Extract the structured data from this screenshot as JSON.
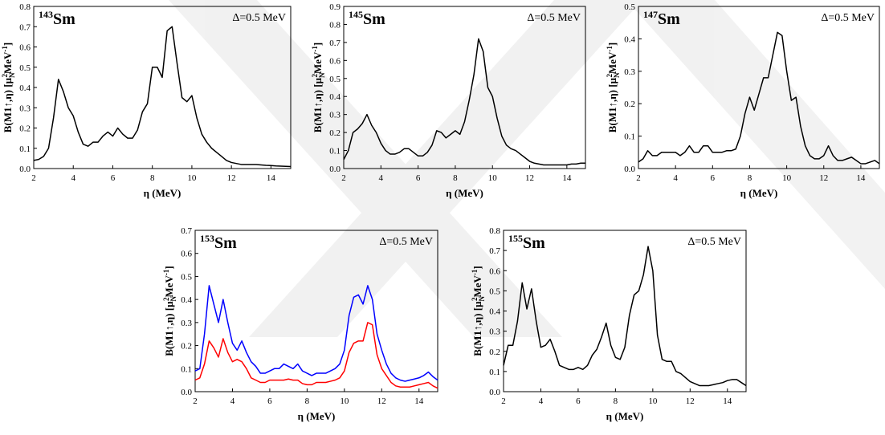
{
  "chart_data": [
    {
      "type": "line",
      "mass_number": "143",
      "element": "Sm",
      "annotation": "Δ=0.5 MeV",
      "xlabel": "η (MeV)",
      "ylabel": [
        "B(M1↑,η)  [μ",
        "N",
        "2",
        "MeV",
        "-1",
        "]"
      ],
      "xlim": [
        2,
        15
      ],
      "xticks": [
        2,
        4,
        6,
        8,
        10,
        12,
        14
      ],
      "ylim": [
        0,
        0.8
      ],
      "yticks": [
        {
          "value": 0,
          "label": "0.0"
        },
        0.1,
        0.2,
        0.3,
        0.4,
        0.5,
        0.6,
        0.7,
        0.8
      ],
      "x": [
        2,
        2.25,
        2.5,
        2.75,
        3,
        3.25,
        3.5,
        3.75,
        4,
        4.25,
        4.5,
        4.75,
        5,
        5.25,
        5.5,
        5.75,
        6,
        6.25,
        6.5,
        6.75,
        7,
        7.25,
        7.5,
        7.75,
        8,
        8.25,
        8.5,
        8.75,
        9,
        9.25,
        9.5,
        9.75,
        10,
        10.25,
        10.5,
        10.75,
        11,
        11.25,
        11.5,
        11.75,
        12,
        12.25,
        12.5,
        12.75,
        13,
        13.25,
        13.5,
        13.75,
        14,
        14.25,
        14.5,
        14.75,
        15
      ],
      "series": [
        {
          "color": "#000000",
          "values": [
            0.04,
            0.045,
            0.06,
            0.1,
            0.25,
            0.44,
            0.38,
            0.3,
            0.26,
            0.18,
            0.12,
            0.11,
            0.13,
            0.13,
            0.16,
            0.18,
            0.16,
            0.2,
            0.17,
            0.15,
            0.15,
            0.19,
            0.28,
            0.32,
            0.5,
            0.5,
            0.45,
            0.68,
            0.7,
            0.52,
            0.35,
            0.33,
            0.36,
            0.25,
            0.17,
            0.13,
            0.1,
            0.08,
            0.06,
            0.04,
            0.03,
            0.025,
            0.02,
            0.02,
            0.02,
            0.02,
            0.018,
            0.016,
            0.015,
            0.013,
            0.012,
            0.011,
            0.01
          ]
        }
      ]
    },
    {
      "type": "line",
      "mass_number": "145",
      "element": "Sm",
      "annotation": "Δ=0.5 MeV",
      "xlabel": "η (MeV)",
      "ylabel": [
        "B(M1↑,η)  [μ",
        "N",
        "2",
        "MeV",
        "-1",
        "]"
      ],
      "xlim": [
        2,
        15
      ],
      "xticks": [
        2,
        4,
        6,
        8,
        10,
        12,
        14
      ],
      "ylim": [
        0,
        0.9
      ],
      "yticks": [
        {
          "value": 0,
          "label": "0.0"
        },
        0.1,
        0.2,
        0.3,
        0.4,
        0.5,
        0.6,
        0.7,
        0.8,
        0.9
      ],
      "x": [
        2,
        2.25,
        2.5,
        2.75,
        3,
        3.25,
        3.5,
        3.75,
        4,
        4.25,
        4.5,
        4.75,
        5,
        5.25,
        5.5,
        5.75,
        6,
        6.25,
        6.5,
        6.75,
        7,
        7.25,
        7.5,
        7.75,
        8,
        8.25,
        8.5,
        8.75,
        9,
        9.25,
        9.5,
        9.75,
        10,
        10.25,
        10.5,
        10.75,
        11,
        11.25,
        11.5,
        11.75,
        12,
        12.25,
        12.5,
        12.75,
        13,
        13.25,
        13.5,
        13.75,
        14,
        14.25,
        14.5,
        14.75,
        15
      ],
      "series": [
        {
          "color": "#000000",
          "values": [
            0.05,
            0.1,
            0.2,
            0.22,
            0.25,
            0.3,
            0.24,
            0.2,
            0.14,
            0.1,
            0.08,
            0.08,
            0.09,
            0.11,
            0.11,
            0.09,
            0.07,
            0.07,
            0.09,
            0.13,
            0.21,
            0.2,
            0.17,
            0.19,
            0.21,
            0.19,
            0.26,
            0.38,
            0.52,
            0.72,
            0.65,
            0.45,
            0.4,
            0.28,
            0.18,
            0.13,
            0.11,
            0.1,
            0.08,
            0.06,
            0.04,
            0.03,
            0.025,
            0.02,
            0.02,
            0.02,
            0.02,
            0.02,
            0.02,
            0.025,
            0.025,
            0.03,
            0.03
          ]
        }
      ]
    },
    {
      "type": "line",
      "mass_number": "147",
      "element": "Sm",
      "annotation": "Δ=0.5 MeV",
      "xlabel": "η (MeV)",
      "ylabel": [
        "B(M1↑,η)  [μ",
        "N",
        "2",
        "MeV",
        "-1",
        "]"
      ],
      "xlim": [
        2,
        15
      ],
      "xticks": [
        2,
        4,
        6,
        8,
        10,
        12,
        14
      ],
      "ylim": [
        0,
        0.5
      ],
      "yticks": [
        {
          "value": 0,
          "label": "0.0"
        },
        0.1,
        0.2,
        0.3,
        0.4,
        0.5
      ],
      "x": [
        2,
        2.25,
        2.5,
        2.75,
        3,
        3.25,
        3.5,
        3.75,
        4,
        4.25,
        4.5,
        4.75,
        5,
        5.25,
        5.5,
        5.75,
        6,
        6.25,
        6.5,
        6.75,
        7,
        7.25,
        7.5,
        7.75,
        8,
        8.25,
        8.5,
        8.75,
        9,
        9.25,
        9.5,
        9.75,
        10,
        10.25,
        10.5,
        10.75,
        11,
        11.25,
        11.5,
        11.75,
        12,
        12.25,
        12.5,
        12.75,
        13,
        13.25,
        13.5,
        13.75,
        14,
        14.25,
        14.5,
        14.75,
        15
      ],
      "series": [
        {
          "color": "#000000",
          "values": [
            0.02,
            0.03,
            0.055,
            0.04,
            0.04,
            0.05,
            0.05,
            0.05,
            0.05,
            0.04,
            0.05,
            0.07,
            0.05,
            0.05,
            0.07,
            0.07,
            0.05,
            0.05,
            0.05,
            0.055,
            0.055,
            0.06,
            0.1,
            0.17,
            0.22,
            0.18,
            0.23,
            0.28,
            0.28,
            0.35,
            0.42,
            0.41,
            0.3,
            0.21,
            0.22,
            0.13,
            0.07,
            0.04,
            0.03,
            0.03,
            0.04,
            0.07,
            0.04,
            0.025,
            0.025,
            0.03,
            0.035,
            0.025,
            0.015,
            0.015,
            0.02,
            0.025,
            0.015
          ]
        }
      ]
    },
    {
      "type": "line",
      "mass_number": "153",
      "element": "Sm",
      "annotation": "Δ=0.5 MeV",
      "xlabel": "η (MeV)",
      "ylabel": [
        "B(M1↑,η)  [μ",
        "N",
        "2",
        "MeV",
        "-1",
        "]"
      ],
      "xlim": [
        2,
        15
      ],
      "xticks": [
        2,
        4,
        6,
        8,
        10,
        12,
        14
      ],
      "ylim": [
        0,
        0.7
      ],
      "yticks": [
        {
          "value": 0,
          "label": "0.0"
        },
        0.1,
        0.2,
        0.3,
        0.4,
        0.5,
        0.6,
        0.7
      ],
      "x": [
        2,
        2.25,
        2.5,
        2.75,
        3,
        3.25,
        3.5,
        3.75,
        4,
        4.25,
        4.5,
        4.75,
        5,
        5.25,
        5.5,
        5.75,
        6,
        6.25,
        6.5,
        6.75,
        7,
        7.25,
        7.5,
        7.75,
        8,
        8.25,
        8.5,
        8.75,
        9,
        9.25,
        9.5,
        9.75,
        10,
        10.25,
        10.5,
        10.75,
        11,
        11.25,
        11.5,
        11.75,
        12,
        12.25,
        12.5,
        12.75,
        13,
        13.25,
        13.5,
        13.75,
        14,
        14.25,
        14.5,
        14.75,
        15
      ],
      "series": [
        {
          "color": "#0000ff",
          "values": [
            0.09,
            0.1,
            0.25,
            0.46,
            0.38,
            0.3,
            0.4,
            0.3,
            0.21,
            0.18,
            0.22,
            0.17,
            0.13,
            0.11,
            0.08,
            0.08,
            0.09,
            0.1,
            0.1,
            0.12,
            0.11,
            0.1,
            0.12,
            0.09,
            0.08,
            0.07,
            0.08,
            0.08,
            0.08,
            0.09,
            0.1,
            0.12,
            0.18,
            0.33,
            0.41,
            0.42,
            0.38,
            0.46,
            0.4,
            0.25,
            0.18,
            0.12,
            0.08,
            0.06,
            0.05,
            0.045,
            0.05,
            0.055,
            0.06,
            0.07,
            0.085,
            0.065,
            0.05
          ]
        },
        {
          "color": "#ff0000",
          "values": [
            0.05,
            0.06,
            0.12,
            0.22,
            0.19,
            0.15,
            0.23,
            0.17,
            0.13,
            0.14,
            0.13,
            0.1,
            0.06,
            0.05,
            0.04,
            0.04,
            0.05,
            0.05,
            0.05,
            0.05,
            0.055,
            0.05,
            0.05,
            0.035,
            0.03,
            0.03,
            0.04,
            0.04,
            0.04,
            0.045,
            0.05,
            0.06,
            0.09,
            0.17,
            0.21,
            0.22,
            0.22,
            0.3,
            0.29,
            0.16,
            0.1,
            0.07,
            0.04,
            0.025,
            0.02,
            0.02,
            0.02,
            0.025,
            0.03,
            0.035,
            0.04,
            0.025,
            0.015
          ]
        }
      ]
    },
    {
      "type": "line",
      "mass_number": "155",
      "element": "Sm",
      "annotation": "Δ=0.5 MeV",
      "xlabel": "η (MeV)",
      "ylabel": [
        "B(M1↑,η)  [μ",
        "N",
        "2",
        "MeV",
        "-1",
        "]"
      ],
      "xlim": [
        2,
        15
      ],
      "xticks": [
        2,
        4,
        6,
        8,
        10,
        12,
        14
      ],
      "ylim": [
        0,
        0.8
      ],
      "yticks": [
        {
          "value": 0,
          "label": "0.0"
        },
        0.1,
        0.2,
        0.3,
        0.4,
        0.5,
        0.6,
        0.7,
        0.8
      ],
      "x": [
        2,
        2.25,
        2.5,
        2.75,
        3,
        3.25,
        3.5,
        3.75,
        4,
        4.25,
        4.5,
        4.75,
        5,
        5.25,
        5.5,
        5.75,
        6,
        6.25,
        6.5,
        6.75,
        7,
        7.25,
        7.5,
        7.75,
        8,
        8.25,
        8.5,
        8.75,
        9,
        9.25,
        9.5,
        9.75,
        10,
        10.25,
        10.5,
        10.75,
        11,
        11.25,
        11.5,
        11.75,
        12,
        12.25,
        12.5,
        12.75,
        13,
        13.25,
        13.5,
        13.75,
        14,
        14.25,
        14.5,
        14.75,
        15
      ],
      "series": [
        {
          "color": "#000000",
          "values": [
            0.13,
            0.23,
            0.23,
            0.35,
            0.54,
            0.41,
            0.51,
            0.35,
            0.22,
            0.23,
            0.26,
            0.2,
            0.13,
            0.12,
            0.11,
            0.11,
            0.12,
            0.11,
            0.13,
            0.18,
            0.21,
            0.27,
            0.34,
            0.23,
            0.17,
            0.16,
            0.22,
            0.38,
            0.48,
            0.5,
            0.58,
            0.72,
            0.6,
            0.28,
            0.16,
            0.15,
            0.15,
            0.1,
            0.09,
            0.07,
            0.05,
            0.04,
            0.03,
            0.03,
            0.03,
            0.035,
            0.04,
            0.045,
            0.055,
            0.06,
            0.06,
            0.045,
            0.03
          ]
        }
      ]
    }
  ]
}
